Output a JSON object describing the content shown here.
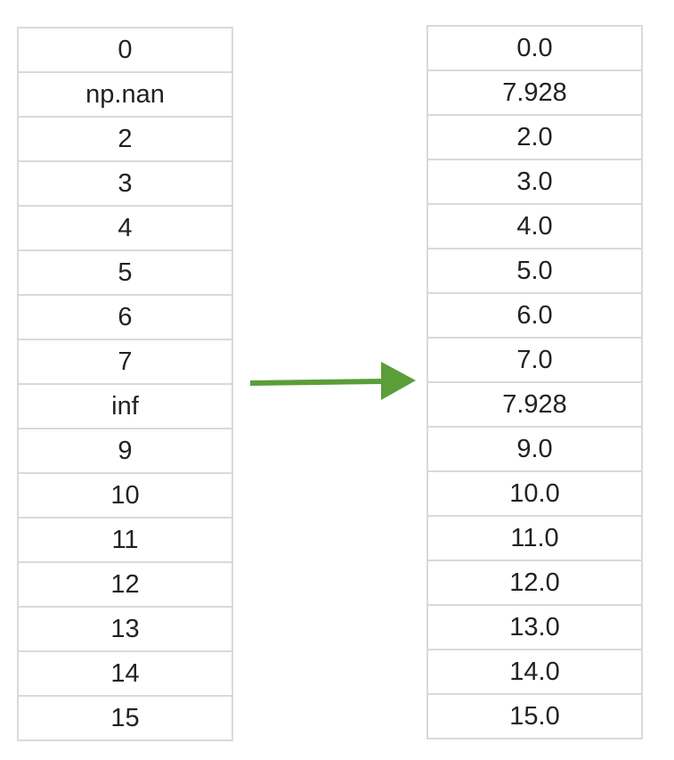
{
  "left_column": {
    "cells": [
      "0",
      "np.nan",
      "2",
      "3",
      "4",
      "5",
      "6",
      "7",
      "inf",
      "9",
      "10",
      "11",
      "12",
      "13",
      "14",
      "15"
    ]
  },
  "right_column": {
    "cells": [
      "0.0",
      "7.928",
      "2.0",
      "3.0",
      "4.0",
      "5.0",
      "6.0",
      "7.0",
      "7.928",
      "9.0",
      "10.0",
      "11.0",
      "12.0",
      "13.0",
      "14.0",
      "15.0"
    ]
  },
  "arrow": {
    "icon": "arrow-right-icon",
    "color": "#5a9e3a"
  }
}
